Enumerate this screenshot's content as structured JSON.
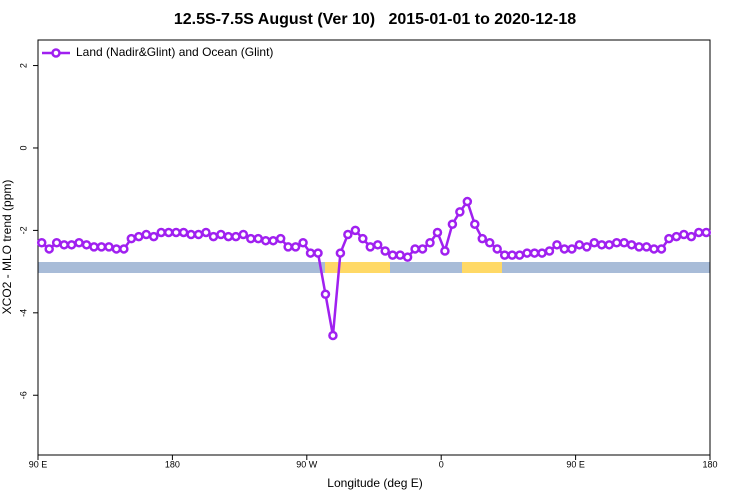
{
  "chart_data": {
    "type": "line",
    "title": "12.5S-7.5S August (Ver 10)   2015-01-01 to 2020-12-18",
    "x_label": "Longitude (deg E)",
    "y_label": "XCO2 - MLO trend (ppm)",
    "x": [
      92.5,
      97.5,
      102.5,
      107.5,
      112.5,
      117.5,
      122.5,
      127.5,
      132.5,
      137.5,
      142.5,
      147.5,
      152.5,
      157.5,
      162.5,
      167.5,
      172.5,
      177.5,
      182.5,
      187.5,
      192.5,
      197.5,
      202.5,
      207.5,
      212.5,
      217.5,
      222.5,
      227.5,
      232.5,
      237.5,
      242.5,
      247.5,
      252.5,
      257.5,
      262.5,
      267.5,
      272.5,
      277.5,
      282.5,
      287.5,
      292.5,
      297.5,
      302.5,
      307.5,
      312.5,
      317.5,
      322.5,
      327.5,
      332.5,
      337.5,
      342.5,
      347.5,
      352.5,
      357.5,
      362.5,
      367.5,
      372.5,
      377.5,
      382.5,
      387.5,
      392.5,
      397.5,
      402.5,
      407.5,
      412.5,
      417.5,
      422.5,
      427.5,
      432.5,
      437.5,
      442.5,
      447.5,
      452.5,
      457.5,
      462.5,
      467.5,
      472.5,
      477.5,
      482.5,
      487.5,
      492.5,
      497.5,
      502.5,
      507.5,
      512.5,
      517.5,
      522.5,
      527.5,
      532.5,
      537.5
    ],
    "series": [
      {
        "name": "Land (Nadir&Glint) and Ocean (Glint)",
        "color": "#a020f0",
        "values": [
          -2.3,
          -2.45,
          -2.3,
          -2.35,
          -2.35,
          -2.3,
          -2.35,
          -2.4,
          -2.4,
          -2.4,
          -2.45,
          -2.45,
          -2.2,
          -2.15,
          -2.1,
          -2.15,
          -2.05,
          -2.05,
          -2.05,
          -2.05,
          -2.1,
          -2.1,
          -2.05,
          -2.15,
          -2.1,
          -2.15,
          -2.15,
          -2.1,
          -2.2,
          -2.2,
          -2.25,
          -2.25,
          -2.2,
          -2.4,
          -2.4,
          -2.3,
          -2.55,
          -2.55,
          -3.55,
          -4.55,
          -2.55,
          -2.1,
          -2.0,
          -2.2,
          -2.4,
          -2.35,
          -2.5,
          -2.6,
          -2.6,
          -2.65,
          -2.45,
          -2.45,
          -2.3,
          -2.05,
          -2.5,
          -1.85,
          -1.55,
          -1.3,
          -1.85,
          -2.2,
          -2.3,
          -2.45,
          -2.6,
          -2.6,
          -2.6,
          -2.55,
          -2.55,
          -2.55,
          -2.5,
          -2.35,
          -2.45,
          -2.45,
          -2.35,
          -2.4,
          -2.3,
          -2.35,
          -2.35,
          -2.3,
          -2.3,
          -2.35,
          -2.4,
          -2.4,
          -2.45,
          -2.45,
          -2.2,
          -2.15,
          -2.1,
          -2.15,
          -2.05,
          -2.05
        ]
      }
    ],
    "xlim": [
      90,
      540
    ],
    "xticks": [
      {
        "value": 90,
        "label": "90 E"
      },
      180,
      {
        "value": 270,
        "label": "90 W"
      },
      {
        "value": 360,
        "label": "0"
      },
      {
        "value": 450,
        "label": "90 E"
      },
      {
        "value": 540,
        "label": "180"
      }
    ],
    "ylim": [
      -7.45,
      2.62
    ],
    "yticks": [
      2,
      0,
      -2,
      -4,
      -6
    ],
    "legend": "top-left"
  }
}
